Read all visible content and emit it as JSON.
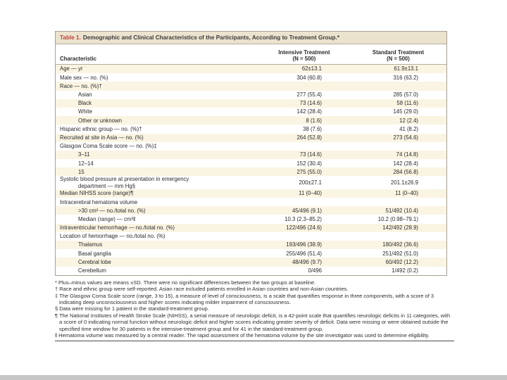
{
  "table": {
    "title_label": "Table 1.",
    "title_text": "Demographic and Clinical Characteristics of the Participants, According to Treatment Group.*",
    "columns": {
      "characteristic": "Characteristic",
      "col1_line1": "Intensive Treatment",
      "col1_line2": "(N = 500)",
      "col2_line1": "Standard Treatment",
      "col2_line2": "(N = 500)"
    },
    "rows": [
      {
        "label": "Age — yr",
        "indent": 0,
        "v1": "62±13.1",
        "v2": "61.9±13.1"
      },
      {
        "label": "Male sex — no. (%)",
        "indent": 0,
        "v1": "304 (60.8)",
        "v2": "316 (63.2)"
      },
      {
        "label": "Race — no. (%)†",
        "indent": 0,
        "v1": "",
        "v2": ""
      },
      {
        "label": "Asian",
        "indent": 1,
        "v1": "277 (55.4)",
        "v2": "285 (57.0)"
      },
      {
        "label": "Black",
        "indent": 1,
        "v1": "73 (14.6)",
        "v2": "58 (11.6)"
      },
      {
        "label": "White",
        "indent": 1,
        "v1": "142 (28.4)",
        "v2": "145 (29.0)"
      },
      {
        "label": "Other or unknown",
        "indent": 1,
        "v1": "8 (1.6)",
        "v2": "12 (2.4)"
      },
      {
        "label": "Hispanic ethnic group — no. (%)†",
        "indent": 0,
        "v1": "38 (7.6)",
        "v2": "41 (8.2)"
      },
      {
        "label": "Recruited at site in Asia — no. (%)",
        "indent": 0,
        "v1": "264 (52.8)",
        "v2": "273 (54.6)"
      },
      {
        "label": "Glasgow Coma Scale score — no. (%)‡",
        "indent": 0,
        "v1": "",
        "v2": ""
      },
      {
        "label": "3–11",
        "indent": 1,
        "v1": "73 (14.6)",
        "v2": "74 (14.8)"
      },
      {
        "label": "12–14",
        "indent": 1,
        "v1": "152 (30.4)",
        "v2": "142 (28.4)"
      },
      {
        "label": "15",
        "indent": 1,
        "v1": "275 (55.0)",
        "v2": "284 (56.8)"
      },
      {
        "label": "Systolic blood pressure at presentation in emergency",
        "label2": "department — mm Hg§",
        "indent": 0,
        "v1": "200±27.1",
        "v2": "201.1±26.9"
      },
      {
        "label": "Median NIHSS score (range)¶",
        "indent": 0,
        "v1": "11 (0–40)",
        "v2": "11 (0–40)"
      },
      {
        "label": "Intracerebral hematoma volume",
        "indent": 0,
        "v1": "",
        "v2": ""
      },
      {
        "label": ">30 cm³ — no./total no. (%)",
        "indent": 1,
        "v1": "45/496 (9.1)",
        "v2": "51/492 (10.4)"
      },
      {
        "label": "Median (range) — cm³‖",
        "indent": 1,
        "v1": "10.3 (2.3–85.2)",
        "v2": "10.2 (0.98–79.1)"
      },
      {
        "label": "Intraventricular hemorrhage — no./total no. (%)",
        "indent": 0,
        "v1": "122/496 (24.6)",
        "v2": "142/492 (28.9)"
      },
      {
        "label": "Location of hemorrhage — no./total no. (%)",
        "indent": 0,
        "v1": "",
        "v2": ""
      },
      {
        "label": "Thalamus",
        "indent": 1,
        "v1": "193/496 (38.9)",
        "v2": "180/492 (36.6)"
      },
      {
        "label": "Basal ganglia",
        "indent": 1,
        "v1": "255/496 (51.4)",
        "v2": "251/492 (51.0)"
      },
      {
        "label": "Cerebral lobe",
        "indent": 1,
        "v1": "48/496 (9.7)",
        "v2": "60/492 (12.2)"
      },
      {
        "label": "Cerebellum",
        "indent": 1,
        "v1": "0/496",
        "v2": "1/492 (0.2)"
      }
    ],
    "footnotes": [
      {
        "marker": "*",
        "text": "Plus–minus values are means ±SD. There were no significant differences between the two groups at baseline."
      },
      {
        "marker": "†",
        "text": "Race and ethnic group were self-reported. Asian race included patients enrolled in Asian countries and non-Asian countries."
      },
      {
        "marker": "‡",
        "text": "The Glasgow Coma Scale score (range, 3 to 15), a measure of level of consciousness, is a scale that quantifies response in three components, with a score of 3 indicating deep unconsciousness and higher scores indicating milder impairment of consciousness."
      },
      {
        "marker": "§",
        "text": "Data were missing for 1 patient in the standard-treatment group."
      },
      {
        "marker": "¶",
        "text": "The National Institutes of Health Stroke Scale (NIHSS), a serial measure of neurologic deficit, is a 42-point scale that quantifies neurologic deficits in 11 categories, with a score of 0 indicating normal function without neurologic deficit and higher scores indicating greater severity of deficit. Data were missing or were obtained outside the specified time window for 30 patients in the intensive-treatment group and for 41 in the standard-treatment group."
      },
      {
        "marker": "‖",
        "text": "Hematoma volume was measured by a central reader. The rapid assessment of the hematoma volume by the site investigator was used to determine eligibility."
      }
    ],
    "colors": {
      "title_red": "#b9453a",
      "title_bar_bg": "#ece3cf",
      "shaded_row_bg": "#faf4e2",
      "frame_border": "#a8a093"
    }
  }
}
